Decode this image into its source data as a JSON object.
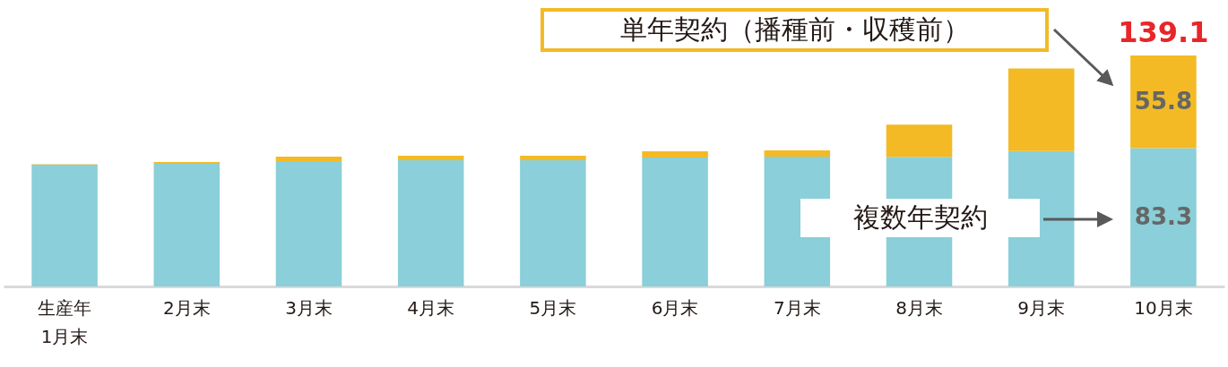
{
  "chart_data": {
    "type": "bar",
    "stacked": true,
    "categories": [
      "生産年\n1月末",
      "2月末",
      "3月末",
      "4月末",
      "5月末",
      "6月末",
      "7月末",
      "8月末",
      "9月末",
      "10月末"
    ],
    "series": [
      {
        "name": "複数年契約",
        "color": "#8acfd9",
        "values": [
          73.3,
          73.9,
          75.5,
          76.0,
          76.0,
          77.6,
          78.2,
          78.1,
          81.6,
          83.3
        ],
        "value_labels": [
          null,
          null,
          null,
          null,
          null,
          null,
          null,
          null,
          null,
          "83.3"
        ]
      },
      {
        "name": "単年契約（播種前・収穫前）",
        "color": "#f3ba25",
        "values": [
          0.3,
          1.1,
          2.7,
          2.7,
          2.7,
          3.8,
          3.8,
          19.3,
          49.7,
          55.8
        ],
        "value_labels": [
          null,
          null,
          null,
          null,
          null,
          null,
          null,
          null,
          null,
          "55.8"
        ]
      }
    ],
    "totals": [
      null,
      null,
      null,
      null,
      null,
      null,
      null,
      null,
      null,
      "139.1"
    ]
  }
}
